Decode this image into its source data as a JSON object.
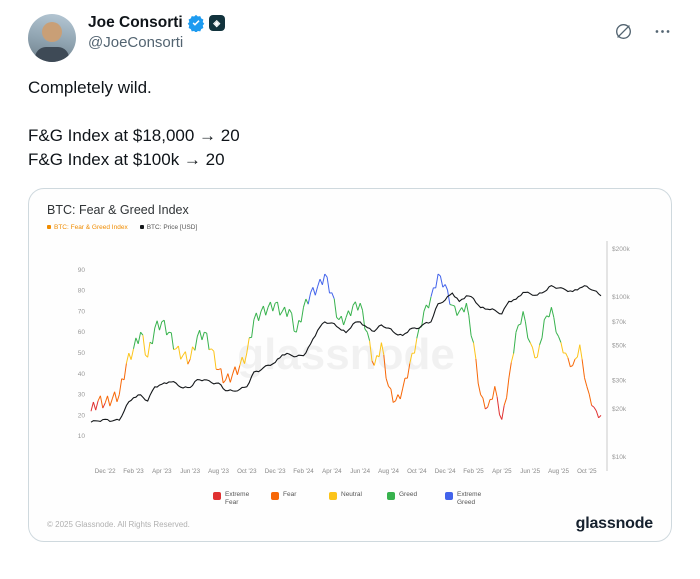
{
  "tweet": {
    "author": {
      "name": "Joe Consorti",
      "handle": "@JoeConsorti"
    },
    "badges": {
      "verified": "blue-check",
      "affiliate": "dark-square-logo"
    },
    "body": {
      "line1": "Completely wild.",
      "line2": "F&G Index at $18,000 → 20",
      "line3": "F&G Index at $100k → 20"
    },
    "icons": {
      "grok": "slashed-circle",
      "more": "ellipsis"
    },
    "accent_color": "#1d9bf0"
  },
  "chart_data": {
    "type": "line",
    "title": "BTC: Fear & Greed Index",
    "series_legend": [
      {
        "name": "BTC: Fear & Greed Index",
        "color": "#f08c00",
        "text_color": "#f08c00"
      },
      {
        "name": "BTC: Price [USD]",
        "color": "#14171a",
        "text_color": "#555555"
      }
    ],
    "watermark": "glassnode",
    "x_step_months": 0.5,
    "x_max": 36,
    "x_ticks": [
      {
        "m": 1,
        "label": "Dec '22"
      },
      {
        "m": 3,
        "label": "Feb '23"
      },
      {
        "m": 5,
        "label": "Apr '23"
      },
      {
        "m": 7,
        "label": "Jun '23"
      },
      {
        "m": 9,
        "label": "Aug '23"
      },
      {
        "m": 11,
        "label": "Oct '23"
      },
      {
        "m": 13,
        "label": "Dec '23"
      },
      {
        "m": 15,
        "label": "Feb '24"
      },
      {
        "m": 17,
        "label": "Apr '24"
      },
      {
        "m": 19,
        "label": "Jun '24"
      },
      {
        "m": 21,
        "label": "Aug '24"
      },
      {
        "m": 23,
        "label": "Oct '24"
      },
      {
        "m": 25,
        "label": "Dec '24"
      },
      {
        "m": 27,
        "label": "Feb '25"
      },
      {
        "m": 29,
        "label": "Apr '25"
      },
      {
        "m": 31,
        "label": "Jun '25"
      },
      {
        "m": 33,
        "label": "Aug '25"
      },
      {
        "m": 35,
        "label": "Oct '25"
      }
    ],
    "left_axis": {
      "ticks": [
        90,
        80,
        70,
        60,
        50,
        40,
        30,
        20,
        10
      ],
      "range": [
        0,
        100
      ]
    },
    "right_axis": {
      "scale": "log",
      "range": [
        10000,
        200000
      ],
      "labels": [
        "$200k",
        "$100k",
        "$70k",
        "$50k",
        "$30k",
        "$20k",
        "$10k"
      ],
      "values": [
        200000,
        100000,
        70000,
        50000,
        30000,
        20000,
        10000
      ]
    },
    "bands": [
      {
        "label": "Extreme Fear",
        "max": 25,
        "color": "#e03131"
      },
      {
        "label": "Fear",
        "max": 46,
        "color": "#f76707"
      },
      {
        "label": "Neutral",
        "max": 54,
        "color": "#fcc419"
      },
      {
        "label": "Greed",
        "max": 75,
        "color": "#37b24d"
      },
      {
        "label": "Extreme Greed",
        "max": 100,
        "color": "#4263eb"
      }
    ],
    "fg_values": [
      22,
      27,
      26,
      28,
      30,
      45,
      52,
      60,
      48,
      62,
      65,
      60,
      52,
      49,
      47,
      58,
      60,
      52,
      42,
      37,
      40,
      44,
      50,
      66,
      70,
      72,
      74,
      70,
      71,
      60,
      72,
      79,
      82,
      88,
      79,
      66,
      67,
      73,
      74,
      60,
      44,
      55,
      34,
      27,
      33,
      45,
      57,
      70,
      77,
      88,
      83,
      73,
      70,
      74,
      55,
      30,
      24,
      34,
      18,
      38,
      60,
      70,
      55,
      48,
      66,
      72,
      58,
      50,
      44,
      54,
      34,
      24,
      20
    ],
    "price_values": [
      16500,
      16800,
      17200,
      16800,
      17000,
      21000,
      23500,
      24500,
      22400,
      27500,
      28500,
      29500,
      29000,
      27000,
      27200,
      30500,
      30400,
      29200,
      29000,
      26000,
      25900,
      26500,
      27500,
      34000,
      35000,
      37500,
      39000,
      43500,
      44000,
      42500,
      43000,
      51000,
      62000,
      70000,
      69000,
      64000,
      60000,
      68000,
      70000,
      64500,
      61000,
      67000,
      64000,
      59000,
      57500,
      63000,
      63500,
      68000,
      70000,
      91000,
      96000,
      106000,
      94000,
      102000,
      98000,
      86000,
      84000,
      83000,
      78500,
      94000,
      97000,
      107000,
      105000,
      103000,
      108000,
      118000,
      114000,
      111000,
      108500,
      114000,
      117000,
      110000,
      102000
    ],
    "footer": {
      "copyright": "© 2025 Glassnode. All Rights Reserved.",
      "brand": "glassnode"
    }
  }
}
